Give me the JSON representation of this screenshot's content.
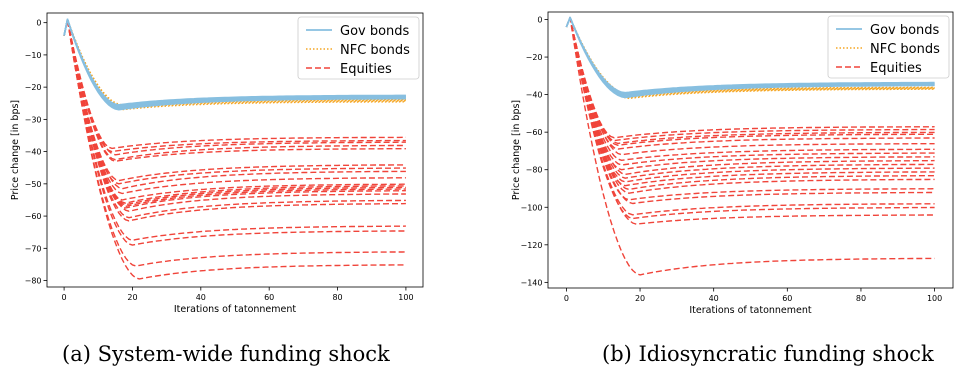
{
  "figure": {
    "captions": [
      "(a) System-wide funding shock",
      "(b) Idiosyncratic funding shock"
    ]
  },
  "colors": {
    "gov": "#87bfe0",
    "nfc": "#f5a623",
    "eq": "#f0443a"
  },
  "chart_data": [
    {
      "type": "line",
      "title": "",
      "xlabel": "Iterations of tatonnement",
      "ylabel": "Price change [in bps]",
      "xlim": [
        -5,
        105
      ],
      "ylim": [
        -82,
        3
      ],
      "xticks": [
        0,
        20,
        40,
        60,
        80,
        100
      ],
      "yticks": [
        0,
        -10,
        -20,
        -30,
        -40,
        -50,
        -60,
        -70,
        -80
      ],
      "grid": false,
      "legend": {
        "position": "top-right",
        "entries": [
          "Gov bonds",
          "NFC bonds",
          "Equities"
        ]
      },
      "series": [
        {
          "name": "Gov bonds",
          "style": "solid",
          "count": 6,
          "min": [
            -27,
            -25.5
          ],
          "final": [
            -23.5,
            -22.5
          ]
        },
        {
          "name": "NFC bonds",
          "style": "dotted",
          "count": 6,
          "min": [
            -27,
            -25.5
          ],
          "final": [
            -24.5,
            -23.5
          ]
        },
        {
          "name": "Equities",
          "style": "dashed",
          "finals": [
            -35.5,
            -36.5,
            -37,
            -38,
            -39,
            -44,
            -45,
            -46,
            -48,
            -50,
            -50.5,
            -51,
            -51.5,
            -52,
            -53,
            -55,
            -56,
            -63,
            -64.5,
            -71,
            -75
          ],
          "mins": [
            -39,
            -40,
            -41,
            -42.5,
            -43,
            -49,
            -50,
            -51.5,
            -53,
            -55,
            -56,
            -56.5,
            -57,
            -57.5,
            -58.5,
            -60.5,
            -61.5,
            -67.5,
            -69,
            -75.5,
            -79.5
          ],
          "min_iters": [
            14,
            14,
            15,
            15,
            15,
            16,
            16,
            17,
            17,
            17,
            18,
            18,
            18,
            18,
            19,
            19,
            19,
            20,
            20,
            21,
            22
          ]
        }
      ]
    },
    {
      "type": "line",
      "title": "",
      "xlabel": "Iterations of tatonnement",
      "ylabel": "Price change [in bps]",
      "xlim": [
        -5,
        105
      ],
      "ylim": [
        -143,
        4
      ],
      "xticks": [
        0,
        20,
        40,
        60,
        80,
        100
      ],
      "yticks": [
        0,
        -20,
        -40,
        -60,
        -80,
        -100,
        -120,
        -140
      ],
      "grid": false,
      "legend": {
        "position": "top-right",
        "entries": [
          "Gov bonds",
          "NFC bonds",
          "Equities"
        ]
      },
      "series": [
        {
          "name": "Gov bonds",
          "style": "solid",
          "count": 6,
          "min": [
            -41.5,
            -39
          ],
          "final": [
            -35,
            -33.5
          ]
        },
        {
          "name": "NFC bonds",
          "style": "dotted",
          "count": 6,
          "min": [
            -42,
            -40
          ],
          "final": [
            -37,
            -36
          ]
        },
        {
          "name": "Equities",
          "style": "dashed",
          "finals": [
            -57,
            -58.5,
            -60,
            -61,
            -63,
            -66,
            -69,
            -71,
            -73,
            -75,
            -77,
            -79,
            -81,
            -83,
            -85,
            -90,
            -92,
            -98,
            -100,
            -104,
            -127
          ],
          "mins": [
            -63,
            -64.5,
            -66,
            -67,
            -69,
            -72,
            -75,
            -77.5,
            -80,
            -82.5,
            -84.5,
            -86.5,
            -88.5,
            -90.5,
            -92.5,
            -96,
            -98,
            -104,
            -106,
            -109,
            -136
          ],
          "min_iters": [
            13,
            13,
            14,
            14,
            14,
            15,
            15,
            15,
            15,
            16,
            16,
            16,
            16,
            17,
            17,
            17,
            18,
            18,
            18,
            19,
            20
          ]
        }
      ]
    }
  ]
}
